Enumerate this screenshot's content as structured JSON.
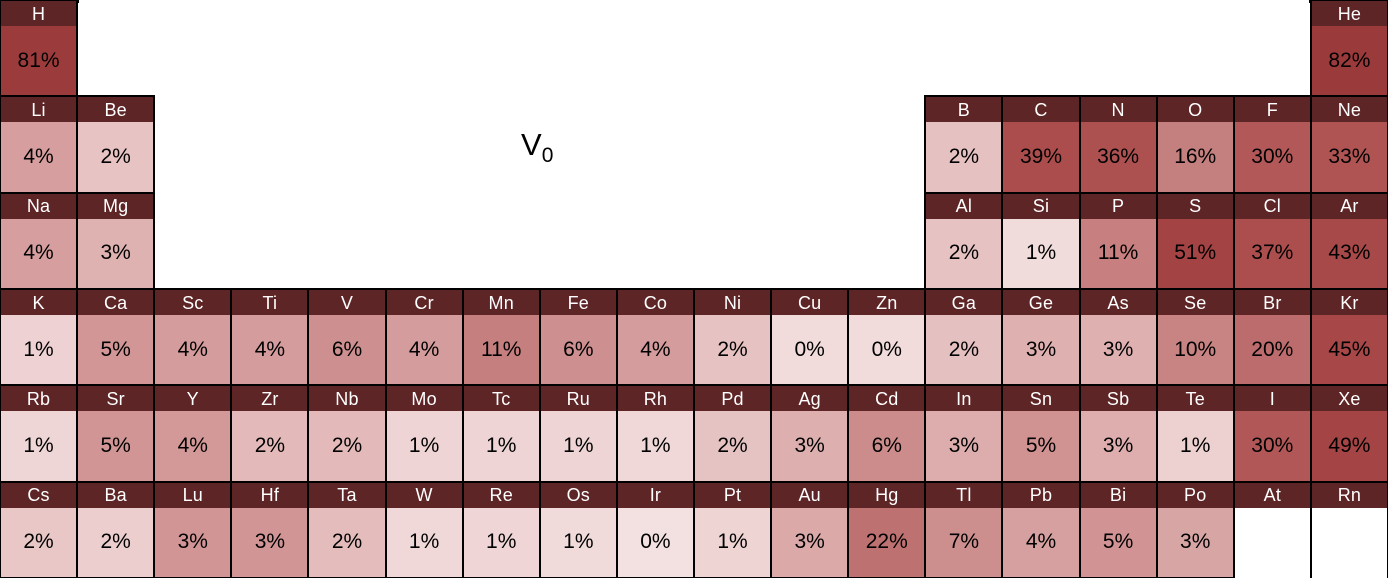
{
  "title": {
    "text": "V",
    "subscript": "0"
  },
  "colors": {
    "header_bg": "#5E2527",
    "header_text": "#FFFFFF",
    "value_text": "#000000",
    "grid_border": "#000000",
    "empty_cell_bg": "#FFFFFF",
    "page_bg": "#FFFFFF",
    "scale_min": "#F3E0E0",
    "scale_max": "#9B3A3A"
  },
  "chart_data": {
    "type": "heatmap",
    "layout": "periodic-table",
    "title": "V0",
    "value_unit": "%",
    "value_range": [
      0,
      82
    ],
    "cells": [
      {
        "symbol": "H",
        "period": 1,
        "group": 1,
        "value_pct": 81,
        "label": "81%",
        "color": "#9C3B3B"
      },
      {
        "symbol": "He",
        "period": 1,
        "group": 18,
        "value_pct": 82,
        "label": "82%",
        "color": "#9B3A3A"
      },
      {
        "symbol": "Li",
        "period": 2,
        "group": 1,
        "value_pct": 4,
        "label": "4%",
        "color": "#D69E9E"
      },
      {
        "symbol": "Be",
        "period": 2,
        "group": 2,
        "value_pct": 2,
        "label": "2%",
        "color": "#E7C3C3"
      },
      {
        "symbol": "B",
        "period": 2,
        "group": 13,
        "value_pct": 2,
        "label": "2%",
        "color": "#E6C1C1"
      },
      {
        "symbol": "C",
        "period": 2,
        "group": 14,
        "value_pct": 39,
        "label": "39%",
        "color": "#AB4D4D"
      },
      {
        "symbol": "N",
        "period": 2,
        "group": 15,
        "value_pct": 36,
        "label": "36%",
        "color": "#AD5050"
      },
      {
        "symbol": "O",
        "period": 2,
        "group": 16,
        "value_pct": 16,
        "label": "16%",
        "color": "#C47F7F"
      },
      {
        "symbol": "F",
        "period": 2,
        "group": 17,
        "value_pct": 30,
        "label": "30%",
        "color": "#B25858"
      },
      {
        "symbol": "Ne",
        "period": 2,
        "group": 18,
        "value_pct": 33,
        "label": "33%",
        "color": "#AF5353"
      },
      {
        "symbol": "Na",
        "period": 3,
        "group": 1,
        "value_pct": 4,
        "label": "4%",
        "color": "#D69E9E"
      },
      {
        "symbol": "Mg",
        "period": 3,
        "group": 2,
        "value_pct": 3,
        "label": "3%",
        "color": "#DFB2B2"
      },
      {
        "symbol": "Al",
        "period": 3,
        "group": 13,
        "value_pct": 2,
        "label": "2%",
        "color": "#E6C2C2"
      },
      {
        "symbol": "Si",
        "period": 3,
        "group": 14,
        "value_pct": 1,
        "label": "1%",
        "color": "#F1DCDC"
      },
      {
        "symbol": "P",
        "period": 3,
        "group": 15,
        "value_pct": 11,
        "label": "11%",
        "color": "#C87F7F"
      },
      {
        "symbol": "S",
        "period": 3,
        "group": 16,
        "value_pct": 51,
        "label": "51%",
        "color": "#A44343"
      },
      {
        "symbol": "Cl",
        "period": 3,
        "group": 17,
        "value_pct": 37,
        "label": "37%",
        "color": "#AC4E4E"
      },
      {
        "symbol": "Ar",
        "period": 3,
        "group": 18,
        "value_pct": 43,
        "label": "43%",
        "color": "#A84949"
      },
      {
        "symbol": "K",
        "period": 4,
        "group": 1,
        "value_pct": 1,
        "label": "1%",
        "color": "#EED2D3"
      },
      {
        "symbol": "Ca",
        "period": 4,
        "group": 2,
        "value_pct": 5,
        "label": "5%",
        "color": "#D29696"
      },
      {
        "symbol": "Sc",
        "period": 4,
        "group": 3,
        "value_pct": 4,
        "label": "4%",
        "color": "#D49C9C"
      },
      {
        "symbol": "Ti",
        "period": 4,
        "group": 4,
        "value_pct": 4,
        "label": "4%",
        "color": "#D49C9C"
      },
      {
        "symbol": "V",
        "period": 4,
        "group": 5,
        "value_pct": 6,
        "label": "6%",
        "color": "#CD8F8F"
      },
      {
        "symbol": "Cr",
        "period": 4,
        "group": 6,
        "value_pct": 4,
        "label": "4%",
        "color": "#D49C9C"
      },
      {
        "symbol": "Mn",
        "period": 4,
        "group": 7,
        "value_pct": 11,
        "label": "11%",
        "color": "#C67F7F"
      },
      {
        "symbol": "Fe",
        "period": 4,
        "group": 8,
        "value_pct": 6,
        "label": "6%",
        "color": "#CD8F8F"
      },
      {
        "symbol": "Co",
        "period": 4,
        "group": 9,
        "value_pct": 4,
        "label": "4%",
        "color": "#D49C9C"
      },
      {
        "symbol": "Ni",
        "period": 4,
        "group": 10,
        "value_pct": 2,
        "label": "2%",
        "color": "#E6C2C2"
      },
      {
        "symbol": "Cu",
        "period": 4,
        "group": 11,
        "value_pct": 0,
        "label": "0%",
        "color": "#F1DBDB"
      },
      {
        "symbol": "Zn",
        "period": 4,
        "group": 12,
        "value_pct": 0,
        "label": "0%",
        "color": "#F1DBDB"
      },
      {
        "symbol": "Ga",
        "period": 4,
        "group": 13,
        "value_pct": 2,
        "label": "2%",
        "color": "#E5C0C0"
      },
      {
        "symbol": "Ge",
        "period": 4,
        "group": 14,
        "value_pct": 3,
        "label": "3%",
        "color": "#DFB0B0"
      },
      {
        "symbol": "As",
        "period": 4,
        "group": 15,
        "value_pct": 3,
        "label": "3%",
        "color": "#DFB0B0"
      },
      {
        "symbol": "Se",
        "period": 4,
        "group": 16,
        "value_pct": 10,
        "label": "10%",
        "color": "#C88383"
      },
      {
        "symbol": "Br",
        "period": 4,
        "group": 17,
        "value_pct": 20,
        "label": "20%",
        "color": "#BC6C6C"
      },
      {
        "symbol": "Kr",
        "period": 4,
        "group": 18,
        "value_pct": 45,
        "label": "45%",
        "color": "#A74747"
      },
      {
        "symbol": "Rb",
        "period": 5,
        "group": 1,
        "value_pct": 1,
        "label": "1%",
        "color": "#EFD6D6"
      },
      {
        "symbol": "Sr",
        "period": 5,
        "group": 2,
        "value_pct": 5,
        "label": "5%",
        "color": "#D19595"
      },
      {
        "symbol": "Y",
        "period": 5,
        "group": 3,
        "value_pct": 4,
        "label": "4%",
        "color": "#D39898"
      },
      {
        "symbol": "Zr",
        "period": 5,
        "group": 4,
        "value_pct": 2,
        "label": "2%",
        "color": "#E3B9B9"
      },
      {
        "symbol": "Nb",
        "period": 5,
        "group": 5,
        "value_pct": 2,
        "label": "2%",
        "color": "#E3B9B9"
      },
      {
        "symbol": "Mo",
        "period": 5,
        "group": 6,
        "value_pct": 1,
        "label": "1%",
        "color": "#EED4D4"
      },
      {
        "symbol": "Tc",
        "period": 5,
        "group": 7,
        "value_pct": 1,
        "label": "1%",
        "color": "#EED4D4"
      },
      {
        "symbol": "Ru",
        "period": 5,
        "group": 8,
        "value_pct": 1,
        "label": "1%",
        "color": "#EED4D4"
      },
      {
        "symbol": "Rh",
        "period": 5,
        "group": 9,
        "value_pct": 1,
        "label": "1%",
        "color": "#F0D8D8"
      },
      {
        "symbol": "Pd",
        "period": 5,
        "group": 10,
        "value_pct": 2,
        "label": "2%",
        "color": "#E6C3C3"
      },
      {
        "symbol": "Ag",
        "period": 5,
        "group": 11,
        "value_pct": 3,
        "label": "3%",
        "color": "#DEAFAF"
      },
      {
        "symbol": "Cd",
        "period": 5,
        "group": 12,
        "value_pct": 6,
        "label": "6%",
        "color": "#CC8C8C"
      },
      {
        "symbol": "In",
        "period": 5,
        "group": 13,
        "value_pct": 3,
        "label": "3%",
        "color": "#DDADAD"
      },
      {
        "symbol": "Sn",
        "period": 5,
        "group": 14,
        "value_pct": 5,
        "label": "5%",
        "color": "#D19292"
      },
      {
        "symbol": "Sb",
        "period": 5,
        "group": 15,
        "value_pct": 3,
        "label": "3%",
        "color": "#DEAEAE"
      },
      {
        "symbol": "Te",
        "period": 5,
        "group": 16,
        "value_pct": 1,
        "label": "1%",
        "color": "#EDD0D0"
      },
      {
        "symbol": "I",
        "period": 5,
        "group": 17,
        "value_pct": 30,
        "label": "30%",
        "color": "#B25757"
      },
      {
        "symbol": "Xe",
        "period": 5,
        "group": 18,
        "value_pct": 49,
        "label": "49%",
        "color": "#A54444"
      },
      {
        "symbol": "Cs",
        "period": 6,
        "group": 1,
        "value_pct": 2,
        "label": "2%",
        "color": "#E9C7C7"
      },
      {
        "symbol": "Ba",
        "period": 6,
        "group": 2,
        "value_pct": 2,
        "label": "2%",
        "color": "#ECCECE"
      },
      {
        "symbol": "Lu",
        "period": 6,
        "group": 3,
        "value_pct": 3,
        "label": "3%",
        "color": "#D29595"
      },
      {
        "symbol": "Hf",
        "period": 6,
        "group": 4,
        "value_pct": 3,
        "label": "3%",
        "color": "#D29595"
      },
      {
        "symbol": "Ta",
        "period": 6,
        "group": 5,
        "value_pct": 2,
        "label": "2%",
        "color": "#E4BCBC"
      },
      {
        "symbol": "W",
        "period": 6,
        "group": 6,
        "value_pct": 1,
        "label": "1%",
        "color": "#F0D8D8"
      },
      {
        "symbol": "Re",
        "period": 6,
        "group": 7,
        "value_pct": 1,
        "label": "1%",
        "color": "#EFD5D5"
      },
      {
        "symbol": "Os",
        "period": 6,
        "group": 8,
        "value_pct": 1,
        "label": "1%",
        "color": "#F1DADA"
      },
      {
        "symbol": "Ir",
        "period": 6,
        "group": 9,
        "value_pct": 0,
        "label": "0%",
        "color": "#F3E0E0"
      },
      {
        "symbol": "Pt",
        "period": 6,
        "group": 10,
        "value_pct": 1,
        "label": "1%",
        "color": "#EFD4D4"
      },
      {
        "symbol": "Au",
        "period": 6,
        "group": 11,
        "value_pct": 3,
        "label": "3%",
        "color": "#DCA9A9"
      },
      {
        "symbol": "Hg",
        "period": 6,
        "group": 12,
        "value_pct": 22,
        "label": "22%",
        "color": "#BE7171"
      },
      {
        "symbol": "Tl",
        "period": 6,
        "group": 13,
        "value_pct": 7,
        "label": "7%",
        "color": "#CD8E8E"
      },
      {
        "symbol": "Pb",
        "period": 6,
        "group": 14,
        "value_pct": 4,
        "label": "4%",
        "color": "#D6A0A0"
      },
      {
        "symbol": "Bi",
        "period": 6,
        "group": 15,
        "value_pct": 5,
        "label": "5%",
        "color": "#D19393"
      },
      {
        "symbol": "Po",
        "period": 6,
        "group": 16,
        "value_pct": 3,
        "label": "3%",
        "color": "#D8A5A5"
      },
      {
        "symbol": "At",
        "period": 6,
        "group": 17,
        "value_pct": null,
        "label": "",
        "color": "#FFFFFF"
      },
      {
        "symbol": "Rn",
        "period": 6,
        "group": 18,
        "value_pct": null,
        "label": "",
        "color": "#FFFFFF"
      }
    ]
  }
}
